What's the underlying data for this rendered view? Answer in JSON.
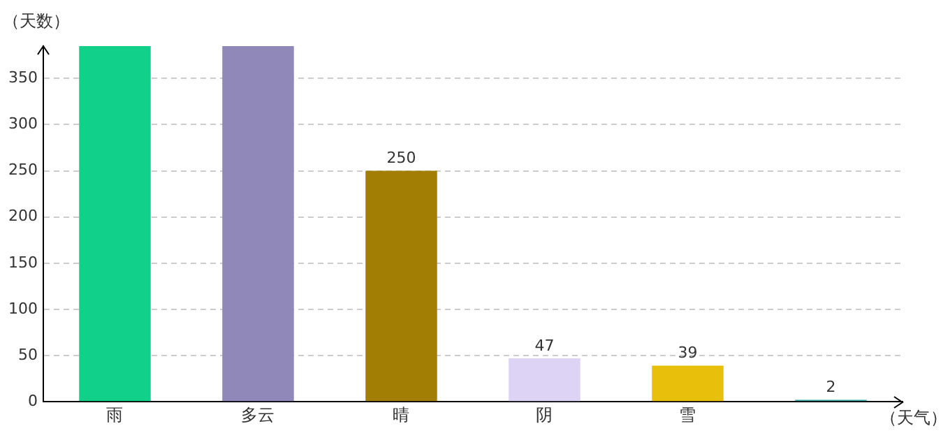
{
  "chart_data": {
    "type": "bar",
    "xlabel": "（天气）",
    "ylabel": "（天数）",
    "categories": [
      "雨",
      "多云",
      "晴",
      "阴",
      "雪",
      null
    ],
    "values": [
      385,
      385,
      250,
      47,
      39,
      2
    ],
    "value_labels": [
      null,
      null,
      "250",
      "47",
      "39",
      "2"
    ],
    "colors": [
      "#10d08a",
      "#9088b8",
      "#a37e05",
      "#ddd3f5",
      "#e8c00c",
      "#30a0a0"
    ],
    "ylim": [
      0,
      385
    ],
    "yticks": [
      0,
      50,
      100,
      150,
      200,
      250,
      300,
      350
    ],
    "grid": "y",
    "legend": false
  }
}
